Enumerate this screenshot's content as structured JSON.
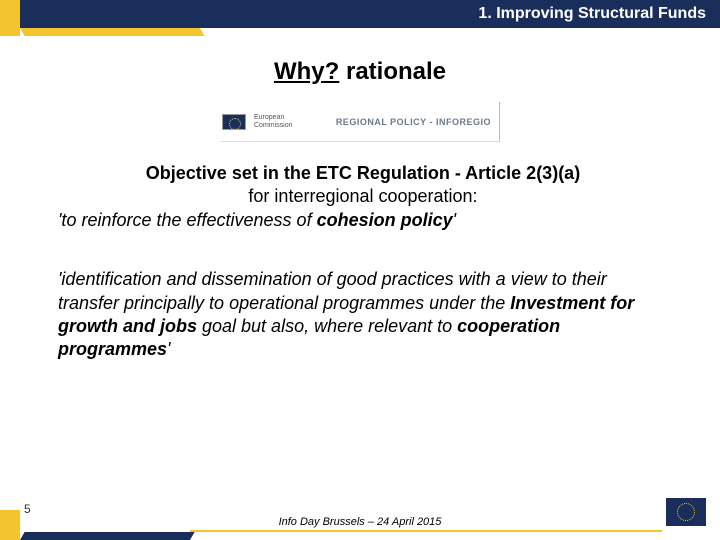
{
  "header": {
    "title": "1. Improving Structural Funds"
  },
  "heading": {
    "why": "Why?",
    "rest": " rationale"
  },
  "logo": {
    "ec_line1": "European",
    "ec_line2": "Commission",
    "right_text": "REGIONAL POLICY - INFOREGIO"
  },
  "objective": {
    "line1": "Objective set in the ETC Regulation  - Article 2(3)(a)",
    "line2": "for interregional cooperation:",
    "line3_pre": "'to reinforce the effectiveness of ",
    "line3_bold": "cohesion policy",
    "line3_post": "'"
  },
  "para2": {
    "t1": "'identification and dissemination of good practices with a view to their transfer principally to operational programmes under the ",
    "b1": "Investment for growth and jobs",
    "t2": " goal but also, where relevant to ",
    "b2": "cooperation programmes",
    "t3": "'"
  },
  "footer": {
    "text": "Info Day Brussels – 24 April 2015",
    "page": "5"
  },
  "colors": {
    "navy": "#1a2e5c",
    "gold": "#f4c430"
  }
}
